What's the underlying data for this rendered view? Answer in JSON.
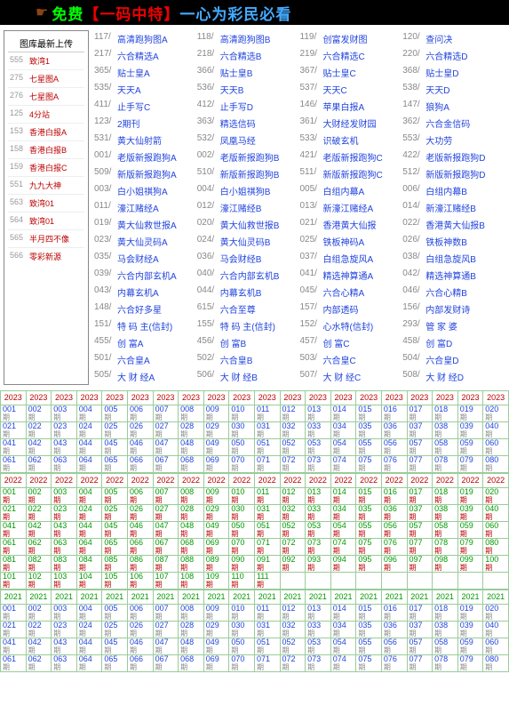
{
  "banner": {
    "t1": "免费",
    "t2": "【一码中特】",
    "t3": "一心为彩民必看"
  },
  "side": {
    "title": "图库最新上传",
    "rows": [
      {
        "n": "555",
        "l": "致湾1"
      },
      {
        "n": "275",
        "l": "七星图A"
      },
      {
        "n": "276",
        "l": "七星图A"
      },
      {
        "n": "125",
        "l": "4分站"
      },
      {
        "n": "153",
        "l": "香港白报A"
      },
      {
        "n": "158",
        "l": "香港白报B"
      },
      {
        "n": "159",
        "l": "香港白报C"
      },
      {
        "n": "551",
        "l": "九九大神"
      },
      {
        "n": "563",
        "l": "致湾01"
      },
      {
        "n": "564",
        "l": "致湾01"
      },
      {
        "n": "565",
        "l": "半月四不像"
      },
      {
        "n": "566",
        "l": "零彩新源"
      }
    ]
  },
  "links": [
    [
      {
        "n": "117",
        "l": "高清跑狗图A"
      },
      {
        "n": "118",
        "l": "高清跑狗图B"
      },
      {
        "n": "119",
        "l": "创富发财图"
      },
      {
        "n": "120",
        "l": "查问决"
      }
    ],
    [
      {
        "n": "217",
        "l": "六合精选A"
      },
      {
        "n": "218",
        "l": "六合精选B"
      },
      {
        "n": "219",
        "l": "六合精选C"
      },
      {
        "n": "220",
        "l": "六合精选D"
      }
    ],
    [
      {
        "n": "365",
        "l": "贴士皇A"
      },
      {
        "n": "366",
        "l": "贴士皇B"
      },
      {
        "n": "367",
        "l": "贴士皇C"
      },
      {
        "n": "368",
        "l": "贴士皇D"
      }
    ],
    [
      {
        "n": "535",
        "l": "天天A"
      },
      {
        "n": "536",
        "l": "天天B"
      },
      {
        "n": "537",
        "l": "天天C"
      },
      {
        "n": "538",
        "l": "天天D"
      }
    ],
    [
      {
        "n": "411",
        "l": "止手写C"
      },
      {
        "n": "412",
        "l": "止手写D"
      },
      {
        "n": "146",
        "l": "苹果白报A"
      },
      {
        "n": "147",
        "l": "狼狗A"
      }
    ],
    [
      {
        "n": "123",
        "l": "2期刊"
      },
      {
        "n": "363",
        "l": "精选信码"
      },
      {
        "n": "361",
        "l": "大财经发财园"
      },
      {
        "n": "362",
        "l": "六合金信码"
      }
    ],
    [
      {
        "n": "531",
        "l": "黄大仙射箭"
      },
      {
        "n": "532",
        "l": "凤凰马经"
      },
      {
        "n": "533",
        "l": "识破玄机"
      },
      {
        "n": "553",
        "l": "大功劳"
      }
    ],
    [
      {
        "n": "001",
        "l": "老版新报跑狗A"
      },
      {
        "n": "002",
        "l": "老版新报跑狗B"
      },
      {
        "n": "421",
        "l": "老版新报跑狗C"
      },
      {
        "n": "422",
        "l": "老版新报跑狗D"
      }
    ],
    [
      {
        "n": "509",
        "l": "新版新报跑狗A"
      },
      {
        "n": "510",
        "l": "新版新报跑狗B"
      },
      {
        "n": "511",
        "l": "新版新报跑狗C"
      },
      {
        "n": "512",
        "l": "新版新报跑狗D"
      }
    ],
    [
      {
        "n": "003",
        "l": "白小姐祺狗A"
      },
      {
        "n": "004",
        "l": "白小姐祺狗B"
      },
      {
        "n": "005",
        "l": "白组内幕A"
      },
      {
        "n": "006",
        "l": "白组内幕B"
      }
    ],
    [
      {
        "n": "011",
        "l": "濠江赌经A"
      },
      {
        "n": "012",
        "l": "濠江赌经B"
      },
      {
        "n": "013",
        "l": "新濠江赌经A"
      },
      {
        "n": "014",
        "l": "新濠江赌经B"
      }
    ],
    [
      {
        "n": "019",
        "l": "黄大仙救世报A"
      },
      {
        "n": "020",
        "l": "黄大仙救世报B"
      },
      {
        "n": "021",
        "l": "香港黄大仙报"
      },
      {
        "n": "022",
        "l": "香港黄大仙报B"
      }
    ],
    [
      {
        "n": "023",
        "l": "黄大仙灵码A"
      },
      {
        "n": "024",
        "l": "黄大仙灵码B"
      },
      {
        "n": "025",
        "l": "铁板神码A"
      },
      {
        "n": "026",
        "l": "铁板神数B"
      }
    ],
    [
      {
        "n": "035",
        "l": "马会财经A"
      },
      {
        "n": "036",
        "l": "马会财经B"
      },
      {
        "n": "037",
        "l": "白组急旋风A"
      },
      {
        "n": "038",
        "l": "白组急旋风B"
      }
    ],
    [
      {
        "n": "039",
        "l": "六合内部玄机A"
      },
      {
        "n": "040",
        "l": "六合内部玄机B"
      },
      {
        "n": "041",
        "l": "精选神算通A"
      },
      {
        "n": "042",
        "l": "精选神算通B"
      }
    ],
    [
      {
        "n": "043",
        "l": "内幕玄机A"
      },
      {
        "n": "044",
        "l": "内幕玄机B"
      },
      {
        "n": "045",
        "l": "六合心精A"
      },
      {
        "n": "046",
        "l": "六合心精B"
      }
    ],
    [
      {
        "n": "148",
        "l": "六合好多星"
      },
      {
        "n": "615",
        "l": "六合至尊"
      },
      {
        "n": "157",
        "l": "内部透码"
      },
      {
        "n": "156",
        "l": "内部发财诗"
      }
    ],
    [
      {
        "n": "151",
        "l": "特 码 主(信封)"
      },
      {
        "n": "155",
        "l": "特 码 主(信封)"
      },
      {
        "n": "152",
        "l": "心水特(信封)"
      },
      {
        "n": "293",
        "l": "管 家 婆"
      }
    ],
    [
      {
        "n": "455",
        "l": "创 富A"
      },
      {
        "n": "456",
        "l": "创 富B"
      },
      {
        "n": "457",
        "l": "创 富C"
      },
      {
        "n": "458",
        "l": "创 富D"
      }
    ],
    [
      {
        "n": "501",
        "l": "六合皇A"
      },
      {
        "n": "502",
        "l": "六合皇B"
      },
      {
        "n": "503",
        "l": "六合皇C"
      },
      {
        "n": "504",
        "l": "六合皇D"
      }
    ],
    [
      {
        "n": "505",
        "l": "大 财 经A"
      },
      {
        "n": "506",
        "l": "大 财 经B"
      },
      {
        "n": "507",
        "l": "大 财 经C"
      },
      {
        "n": "508",
        "l": "大 财 经D"
      }
    ]
  ],
  "y": {
    "y23": "2023",
    "y22": "2022",
    "y21": "2021"
  },
  "q": "期"
}
